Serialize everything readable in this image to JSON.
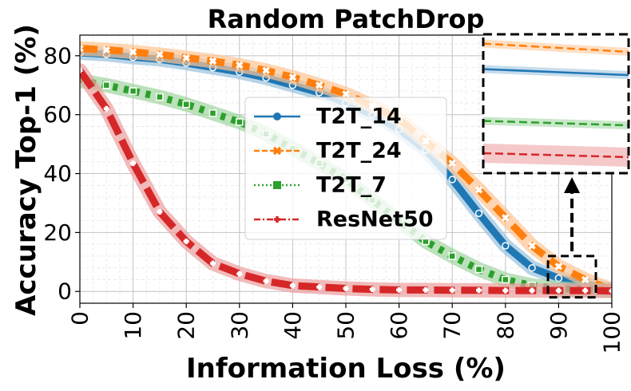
{
  "chart_data": {
    "type": "line",
    "title": "Random PatchDrop",
    "xlabel": "Information Loss (%)",
    "ylabel": "Accuracy Top-1 (%)",
    "xlim": [
      0,
      100
    ],
    "ylim": [
      -4,
      87
    ],
    "xticks": [
      0,
      10,
      20,
      30,
      40,
      50,
      60,
      70,
      80,
      90,
      100
    ],
    "yticks": [
      0,
      20,
      40,
      60,
      80
    ],
    "grid": true,
    "legend_position": "center",
    "x": [
      0,
      5,
      10,
      15,
      20,
      25,
      30,
      35,
      40,
      45,
      50,
      55,
      60,
      65,
      70,
      75,
      80,
      85,
      90,
      95,
      100
    ],
    "series": [
      {
        "name": "T2T_14",
        "color": "#1f77b4",
        "line_style": "solid",
        "marker": "circle",
        "values": [
          81,
          80.5,
          79.5,
          78.8,
          77.5,
          76,
          74.5,
          72.5,
          70,
          67.5,
          64,
          60,
          55,
          48,
          38,
          26.5,
          15.5,
          8,
          4.5,
          2.5,
          0.5
        ]
      },
      {
        "name": "T2T_24",
        "color": "#ff7f0e",
        "line_style": "dashed",
        "marker": "x",
        "values": [
          82.5,
          82,
          81.3,
          80.4,
          79.3,
          78.2,
          76.8,
          75,
          72.7,
          70,
          67,
          63,
          58.5,
          51,
          43.5,
          34.5,
          25,
          15.5,
          8.5,
          4,
          0.5
        ]
      },
      {
        "name": "T2T_7",
        "color": "#2ca02c",
        "line_style": "dotted",
        "marker": "square",
        "values": [
          71.5,
          70,
          68,
          66,
          63.5,
          60.5,
          57.5,
          53.5,
          48.5,
          43.5,
          38,
          31,
          24,
          17,
          12,
          7.5,
          4,
          2,
          1,
          0.5,
          0.2
        ]
      },
      {
        "name": "ResNet50",
        "color": "#d62728",
        "line_style": "dashdot",
        "marker": "plus",
        "values": [
          75,
          62,
          43.5,
          27,
          17,
          9.5,
          6,
          3.5,
          2,
          1.5,
          1,
          0.7,
          0.5,
          0.5,
          0.4,
          0.4,
          0.3,
          0.3,
          0.3,
          0.3,
          0.2
        ]
      }
    ],
    "inset": {
      "description": "zoomed region",
      "x_range": [
        88,
        97
      ],
      "y_range": [
        -2,
        12
      ]
    }
  }
}
